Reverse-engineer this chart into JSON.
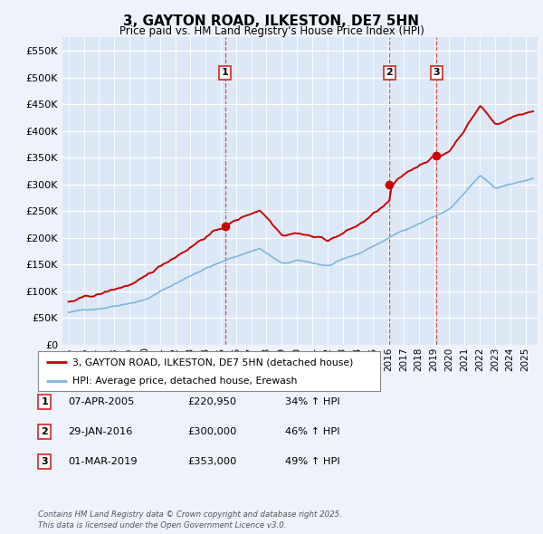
{
  "title": "3, GAYTON ROAD, ILKESTON, DE7 5HN",
  "subtitle": "Price paid vs. HM Land Registry's House Price Index (HPI)",
  "background_color": "#eef2fb",
  "plot_bg_color": "#dce8f5",
  "ylim": [
    0,
    575000
  ],
  "yticks": [
    0,
    50000,
    100000,
    150000,
    200000,
    250000,
    300000,
    350000,
    400000,
    450000,
    500000,
    550000
  ],
  "ytick_labels": [
    "£0",
    "£50K",
    "£100K",
    "£150K",
    "£200K",
    "£250K",
    "£300K",
    "£350K",
    "£400K",
    "£450K",
    "£500K",
    "£550K"
  ],
  "hpi_color": "#7ab8e0",
  "price_color": "#cc0000",
  "vline_color": "#dd3333",
  "grid_color": "#c8d8ec",
  "purchases": [
    {
      "date_num": 2005.27,
      "price": 220950,
      "label": "1"
    },
    {
      "date_num": 2016.08,
      "price": 300000,
      "label": "2"
    },
    {
      "date_num": 2019.17,
      "price": 353000,
      "label": "3"
    }
  ],
  "table_entries": [
    {
      "num": "1",
      "date": "07-APR-2005",
      "price": "£220,950",
      "change": "34% ↑ HPI"
    },
    {
      "num": "2",
      "date": "29-JAN-2016",
      "price": "£300,000",
      "change": "46% ↑ HPI"
    },
    {
      "num": "3",
      "date": "01-MAR-2019",
      "price": "£353,000",
      "change": "49% ↑ HPI"
    }
  ],
  "legend_entries": [
    "3, GAYTON ROAD, ILKESTON, DE7 5HN (detached house)",
    "HPI: Average price, detached house, Erewash"
  ],
  "footer": "Contains HM Land Registry data © Crown copyright and database right 2025.\nThis data is licensed under the Open Government Licence v3.0."
}
